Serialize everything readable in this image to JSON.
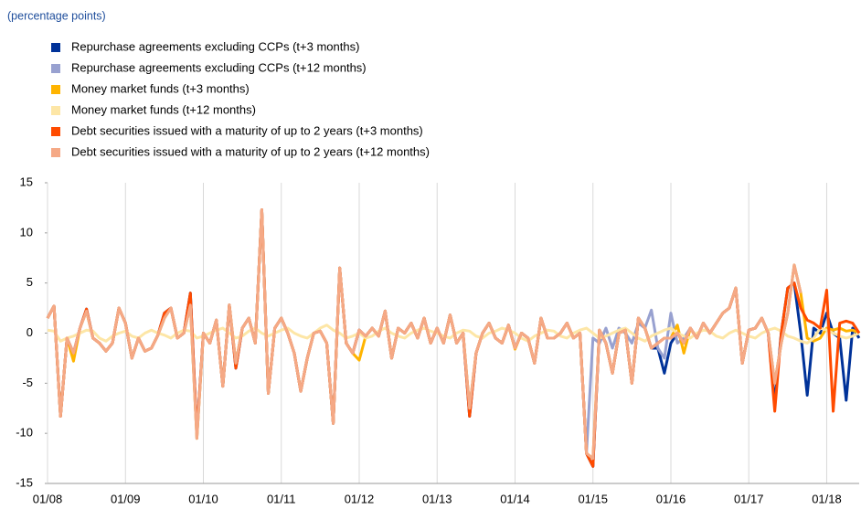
{
  "chart_data": {
    "type": "line",
    "subtitle": "(percentage points)",
    "categories": [
      "01/08",
      null,
      null,
      null,
      null,
      null,
      null,
      null,
      null,
      null,
      null,
      null,
      "01/09",
      null,
      null,
      null,
      null,
      null,
      null,
      null,
      null,
      null,
      null,
      null,
      "01/10",
      null,
      null,
      null,
      null,
      null,
      null,
      null,
      null,
      null,
      null,
      null,
      "01/11",
      null,
      null,
      null,
      null,
      null,
      null,
      null,
      null,
      null,
      null,
      null,
      "01/12",
      null,
      null,
      null,
      null,
      null,
      null,
      null,
      null,
      null,
      null,
      null,
      "01/13",
      null,
      null,
      null,
      null,
      null,
      null,
      null,
      null,
      null,
      null,
      null,
      "01/14",
      null,
      null,
      null,
      null,
      null,
      null,
      null,
      null,
      null,
      null,
      null,
      "01/15",
      null,
      null,
      null,
      null,
      null,
      null,
      null,
      null,
      null,
      null,
      null,
      "01/16",
      null,
      null,
      null,
      null,
      null,
      null,
      null,
      null,
      null,
      null,
      null,
      "01/17",
      null,
      null,
      null,
      null,
      null,
      null,
      null,
      null,
      null,
      null,
      null,
      "01/18",
      null,
      null,
      null,
      null,
      null
    ],
    "ylim": [
      -15,
      15
    ],
    "yticks": [
      -15,
      -10,
      -5,
      0,
      5,
      10,
      15
    ],
    "grid": true,
    "series": [
      {
        "name": "Repurchase agreements excluding CCPs (t+3 months)",
        "color": "#003299",
        "values": [
          1.5,
          2.7,
          -8.3,
          -0.5,
          -2,
          0.5,
          2.4,
          -0.5,
          -1,
          -1.8,
          -1,
          2.5,
          1,
          -2.5,
          -0.5,
          -1.8,
          -1.5,
          -0.2,
          2,
          2.5,
          -0.5,
          0,
          4,
          -10,
          0,
          -1,
          1.3,
          -5.3,
          2.8,
          -3.5,
          0.5,
          1.5,
          -1,
          12.3,
          -6,
          0.5,
          1.5,
          0,
          -2,
          -5.8,
          -2.5,
          0,
          0.2,
          -1,
          -9,
          6.5,
          -1,
          -2,
          0.3,
          -0.3,
          0.5,
          -0.3,
          2.2,
          -2.5,
          0.5,
          0,
          1,
          -0.5,
          1.5,
          -1,
          0.5,
          -1,
          1.8,
          -1,
          0,
          -8.3,
          -2,
          0,
          1,
          -0.5,
          -1,
          0.8,
          -1.5,
          0,
          -0.5,
          -3,
          1.5,
          -0.5,
          -0.5,
          0,
          1,
          -0.5,
          0,
          -12,
          -13.3,
          0.3,
          -1,
          -4,
          0,
          0.3,
          -5,
          1.5,
          0.5,
          -1.5,
          -1.5,
          -4,
          -1,
          0,
          -1,
          0.5,
          -0.5,
          1,
          0,
          1,
          2,
          2.5,
          4.5,
          -3,
          0.3,
          0.5,
          1.5,
          0,
          -7,
          0,
          4.5,
          5,
          0,
          -6.2,
          0.5,
          0,
          2,
          0,
          -0.5,
          -6.7,
          0.5,
          -0.5
        ]
      },
      {
        "name": "Repurchase agreements excluding CCPs (t+12 months)",
        "color": "#98a1d0",
        "values": [
          1.5,
          2.7,
          -8.3,
          -0.5,
          -2,
          0.5,
          2.2,
          -0.5,
          -1,
          -1.8,
          -1,
          2.5,
          1,
          -2.5,
          -0.5,
          -1.8,
          -1.5,
          -0.2,
          1.5,
          2.5,
          -0.5,
          0,
          2.8,
          -10.5,
          0,
          -1,
          1.3,
          -5.3,
          2.8,
          -3,
          0.5,
          1.5,
          -1,
          12.3,
          -6,
          0.5,
          1.5,
          0,
          -2,
          -5.8,
          -2.5,
          0,
          0.2,
          -1,
          -9,
          6.5,
          -1,
          -2,
          0.3,
          -0.3,
          0.5,
          -0.3,
          2.2,
          -2.5,
          0.5,
          0,
          1,
          -0.5,
          1.5,
          -1,
          0.5,
          -1,
          1.8,
          -1,
          0,
          -7.5,
          -2,
          0,
          1,
          -0.5,
          -1,
          0.8,
          -1.5,
          0,
          -0.5,
          -3,
          1.5,
          -0.5,
          -0.5,
          0,
          1,
          -0.5,
          0,
          -12,
          -0.5,
          -1,
          0.5,
          -1.5,
          0.5,
          0,
          -1,
          1,
          0.5,
          2.3,
          -1.5,
          -2.5,
          2,
          -1,
          -0.5,
          0.5,
          -0.5,
          1,
          0,
          1,
          2,
          2.5,
          4.5,
          -3,
          0.3,
          0.5,
          1.5,
          0,
          -5,
          -1,
          2,
          6.8,
          4,
          null,
          null,
          null,
          null,
          null,
          null,
          null,
          null,
          null
        ]
      },
      {
        "name": "Money market funds (t+3 months)",
        "color": "#ffb400",
        "values": [
          1.5,
          2.7,
          -8.3,
          -0.5,
          -2.8,
          0.5,
          2.2,
          -0.5,
          -1,
          -1.8,
          -1,
          2.5,
          1,
          -2.5,
          -0.5,
          -1.8,
          -1.5,
          -0.2,
          1.5,
          2.5,
          -0.5,
          0,
          2.8,
          -10.5,
          0,
          -1,
          1.3,
          -5.3,
          2.8,
          -3,
          0.5,
          1.5,
          -1,
          12.3,
          -6,
          0.5,
          1.5,
          0,
          -2,
          -5.8,
          -2.5,
          0,
          0.2,
          -1,
          -9,
          6.5,
          -1,
          -2,
          -2.7,
          -0.3,
          0.5,
          -0.3,
          2.2,
          -2.5,
          0.5,
          0,
          1,
          -0.5,
          1.5,
          -1,
          0.5,
          -1,
          1.8,
          -1,
          0,
          -7.5,
          -2,
          0,
          1,
          -0.5,
          -1,
          0.8,
          -1.6,
          0,
          -0.5,
          -3,
          1.5,
          -0.5,
          -0.5,
          0,
          1,
          -0.5,
          0,
          -12,
          -12.5,
          0.3,
          -1,
          -4,
          0,
          0.3,
          -5,
          1.5,
          0.5,
          -1.5,
          -1,
          -0.5,
          -0.5,
          0.8,
          -2,
          0.5,
          -0.5,
          1,
          0,
          1,
          2,
          2.5,
          4.5,
          -3,
          0.3,
          0.5,
          1.5,
          0,
          -5,
          -1,
          2,
          6.8,
          4,
          -0.5,
          -0.8,
          -0.5,
          0.5,
          0.3,
          0.5,
          0.2,
          0.3,
          0
        ]
      },
      {
        "name": "Money market funds (t+12 months)",
        "color": "#fde6a6",
        "values": [
          0.3,
          0.2,
          -0.8,
          -0.5,
          -0.3,
          0,
          0.3,
          0.2,
          -0.5,
          -0.8,
          -0.3,
          0,
          0.2,
          -0.3,
          -0.5,
          0,
          0.3,
          0,
          -0.2,
          -0.5,
          0,
          0.3,
          0.2,
          -0.5,
          -0.3,
          0,
          0.3,
          0.5,
          0,
          -0.5,
          -0.3,
          0.2,
          0.5,
          0,
          -0.3,
          0,
          0.3,
          0.5,
          0,
          -0.3,
          -0.5,
          0,
          0.5,
          0.8,
          0.3,
          0,
          -0.5,
          -0.3,
          0,
          -0.5,
          -0.3,
          0.2,
          0.5,
          0,
          -0.3,
          -0.5,
          0,
          0.3,
          0.5,
          0.2,
          0,
          -0.3,
          -0.5,
          0,
          0.3,
          0.2,
          -0.3,
          -0.5,
          0,
          0.2,
          0.5,
          0.3,
          0,
          -0.5,
          -0.8,
          -0.3,
          0,
          0.3,
          0.2,
          -0.3,
          -0.5,
          0,
          0.3,
          0.5,
          0,
          -0.5,
          -0.3,
          0,
          0.3,
          0.5,
          0,
          -0.5,
          -0.8,
          -0.3,
          0,
          0.3,
          0.5,
          0,
          -0.3,
          -0.5,
          0,
          0.3,
          0.2,
          -0.3,
          -0.5,
          0,
          0.3,
          0,
          -0.3,
          -0.5,
          0,
          0.3,
          0.5,
          0.2,
          -0.3,
          -0.5,
          -0.8,
          -1,
          -0.5,
          0.5,
          0.3,
          0,
          -0.3,
          -0.5,
          -0.3,
          0
        ]
      },
      {
        "name": "Debt securities issued with a maturity of up to 2 years (t+3 months)",
        "color": "#ff4b00",
        "values": [
          1.5,
          2.7,
          -8.3,
          -0.5,
          -2,
          0.5,
          2.4,
          -0.5,
          -1,
          -1.8,
          -1,
          2.5,
          1,
          -2.5,
          -0.5,
          -1.8,
          -1.5,
          -0.2,
          2,
          2.5,
          -0.5,
          0,
          4,
          -10,
          0,
          -1,
          1.3,
          -5.3,
          2.8,
          -3.5,
          0.5,
          1.5,
          -1,
          12.3,
          -6,
          0.5,
          1.5,
          0,
          -2,
          -5.8,
          -2.5,
          0,
          0.2,
          -1,
          -9,
          6.5,
          -1,
          -2,
          0.3,
          -0.3,
          0.5,
          -0.3,
          2.2,
          -2.5,
          0.5,
          0,
          1,
          -0.5,
          1.5,
          -1,
          0.5,
          -1,
          1.8,
          -1,
          0,
          -8.3,
          -2,
          0,
          1,
          -0.5,
          -1,
          0.8,
          -1.5,
          0,
          -0.5,
          -3,
          1.5,
          -0.5,
          -0.5,
          0,
          1,
          -0.5,
          0,
          -12,
          -13.3,
          0.3,
          -1,
          -4,
          0,
          0.3,
          -5,
          1.5,
          0.5,
          -1.5,
          -1,
          -0.5,
          -0.5,
          0,
          -1,
          0.5,
          -0.5,
          1,
          0,
          1,
          2,
          2.5,
          4.5,
          -3,
          0.3,
          0.5,
          1.5,
          0,
          -7.8,
          0,
          4.5,
          5,
          2.5,
          1.3,
          1,
          0.5,
          4.3,
          -7.8,
          1,
          1.2,
          1,
          0
        ]
      },
      {
        "name": "Debt securities issued with a maturity of up to 2 years (t+12 months)",
        "color": "#f5a986",
        "values": [
          1.5,
          2.7,
          -8.3,
          -0.5,
          -2,
          0.5,
          2.2,
          -0.5,
          -1,
          -1.8,
          -1,
          2.5,
          1,
          -2.5,
          -0.5,
          -1.8,
          -1.5,
          -0.2,
          1.5,
          2.5,
          -0.5,
          0,
          2.8,
          -10.5,
          0,
          -1,
          1.3,
          -5.3,
          2.8,
          -3,
          0.5,
          1.5,
          -1,
          12.3,
          -6,
          0.5,
          1.5,
          0,
          -2,
          -5.8,
          -2.5,
          0,
          0.2,
          -1,
          -9,
          6.5,
          -1,
          -2,
          0.3,
          -0.3,
          0.5,
          -0.3,
          2.2,
          -2.5,
          0.5,
          0,
          1,
          -0.5,
          1.5,
          -1,
          0.5,
          -1,
          1.8,
          -1,
          0,
          -7.5,
          -2,
          0,
          1,
          -0.5,
          -1,
          0.8,
          -1.5,
          0,
          -0.5,
          -3,
          1.5,
          -0.5,
          -0.5,
          0,
          1,
          -0.5,
          0,
          -12,
          -12.5,
          0.3,
          -1,
          -4,
          0,
          0.3,
          -5,
          1.5,
          0.5,
          -1.5,
          -1,
          -0.5,
          -0.5,
          0,
          -1,
          0.5,
          -0.5,
          1,
          0,
          1,
          2,
          2.5,
          4.5,
          -3,
          0.3,
          0.5,
          1.5,
          0,
          -5,
          -1,
          2,
          6.8,
          4,
          null,
          null,
          null,
          null,
          null,
          null,
          null,
          null,
          null
        ]
      }
    ]
  }
}
